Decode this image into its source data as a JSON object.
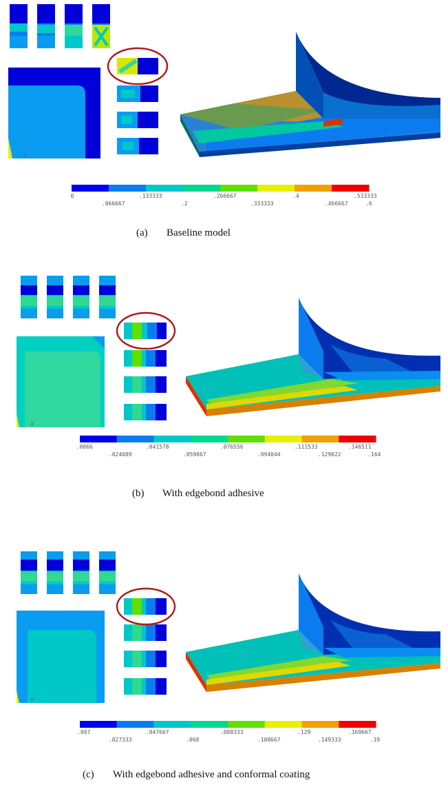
{
  "panels": [
    {
      "label": "(a)",
      "caption": "Baseline model",
      "axis_letter": "X",
      "colorbar": {
        "colors": [
          "#0000f0",
          "#0a7cf0",
          "#00c8c8",
          "#00d890",
          "#5fe000",
          "#e8f000",
          "#f0a000",
          "#f00000"
        ],
        "upper_ticks": [
          "0",
          ".133333",
          ".266667",
          ".4",
          ".533333"
        ],
        "lower_ticks": [
          ".066667",
          ".2",
          ".333333",
          ".466667",
          ".6"
        ]
      }
    },
    {
      "label": "(b)",
      "caption": "With edgebond adhesive",
      "axis_letter": "X",
      "colorbar": {
        "colors": [
          "#0000f0",
          "#0a7cf0",
          "#00c8c8",
          "#00d890",
          "#5fe000",
          "#e8f000",
          "#f0a000",
          "#f00000"
        ],
        "upper_ticks": [
          ".0066",
          ".041578",
          ".076556",
          ".111533",
          ".146511"
        ],
        "lower_ticks": [
          ".024089",
          ".059067",
          ".094044",
          ".129022",
          ".164"
        ]
      }
    },
    {
      "label": "(c)",
      "caption": "With edgebond adhesive and conformal coating",
      "axis_letter": "X",
      "colorbar": {
        "colors": [
          "#0000f0",
          "#0a7cf0",
          "#00c8c8",
          "#00d890",
          "#5fe000",
          "#e8f000",
          "#f0a000",
          "#f00000"
        ],
        "upper_ticks": [
          ".007",
          ".047667",
          ".088333",
          ".129",
          ".169667"
        ],
        "lower_ticks": [
          ".027333",
          ".068",
          ".108667",
          ".149333",
          ".19"
        ]
      }
    }
  ],
  "highlight_color": "#b01818"
}
